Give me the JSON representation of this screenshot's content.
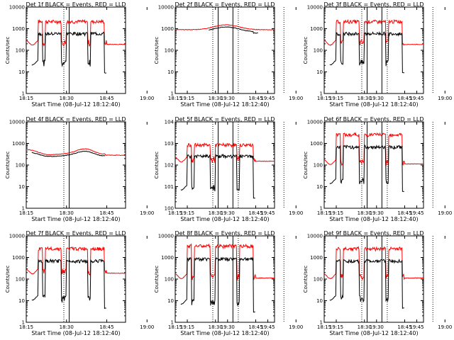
{
  "chart_data": {
    "type": "line",
    "layout": "3x3 grid of panels",
    "ylabel": "Counts/sec",
    "xlabel": "Start Time (08-Jul-12 18:12:40)",
    "x_ticks": [
      "18:15",
      "18:30",
      "18:45",
      "19:00",
      "19:15",
      "19:30",
      "19:45"
    ],
    "y_ticks_linear": [
      "1",
      "10",
      "100",
      "1000",
      "10000"
    ],
    "y_scale": "log",
    "ylim": [
      1,
      10000
    ],
    "xlim_minutes_after_18_00": [
      15,
      52
    ],
    "vertical_lines": {
      "solid": [
        "18:31",
        "19:32"
      ],
      "dotted": [
        "18:29",
        "19:34",
        "19:51"
      ]
    },
    "series_colors": {
      "events": "#000000",
      "lld": "#ff0000"
    },
    "panels": [
      {
        "title": "Det 1f BLACK = Events, RED = LLD",
        "profile": "flare",
        "events_base": 30,
        "events_high": 700,
        "lld_base": 250,
        "lld_high": 2500
      },
      {
        "title": "Det 2f BLACK = Events, RED = LLD",
        "profile": "flat",
        "events_base": 700,
        "events_high": 1200,
        "lld_base": 900,
        "lld_high": 1500
      },
      {
        "title": "Det 3f BLACK = Events, RED = LLD",
        "profile": "flare",
        "events_base": 30,
        "events_high": 700,
        "lld_base": 250,
        "lld_high": 2500
      },
      {
        "title": "Det 4f BLACK = Events, RED = LLD",
        "profile": "smooth",
        "events_base": 250,
        "events_high": 500,
        "lld_base": 300,
        "lld_high": 650
      },
      {
        "title": "Det 5f BLACK = Events, RED = LLD",
        "profile": "flare",
        "events_base": 10,
        "events_high": 300,
        "lld_base": 200,
        "lld_high": 1000,
        "y_ticks_sci": true
      },
      {
        "title": "Det 6f BLACK = Events, RED = LLD",
        "profile": "flare",
        "events_base": 20,
        "events_high": 800,
        "lld_base": 150,
        "lld_high": 3000
      },
      {
        "title": "Det 7f BLACK = Events, RED = LLD",
        "profile": "flare",
        "events_base": 15,
        "events_high": 800,
        "lld_base": 250,
        "lld_high": 3000
      },
      {
        "title": "Det 8f BLACK = Events, RED = LLD",
        "profile": "flare",
        "events_base": 10,
        "events_high": 1000,
        "lld_base": 150,
        "lld_high": 4000
      },
      {
        "title": "Det 9f BLACK = Events, RED = LLD",
        "profile": "flare",
        "events_base": 15,
        "events_high": 800,
        "lld_base": 150,
        "lld_high": 3000
      }
    ]
  }
}
